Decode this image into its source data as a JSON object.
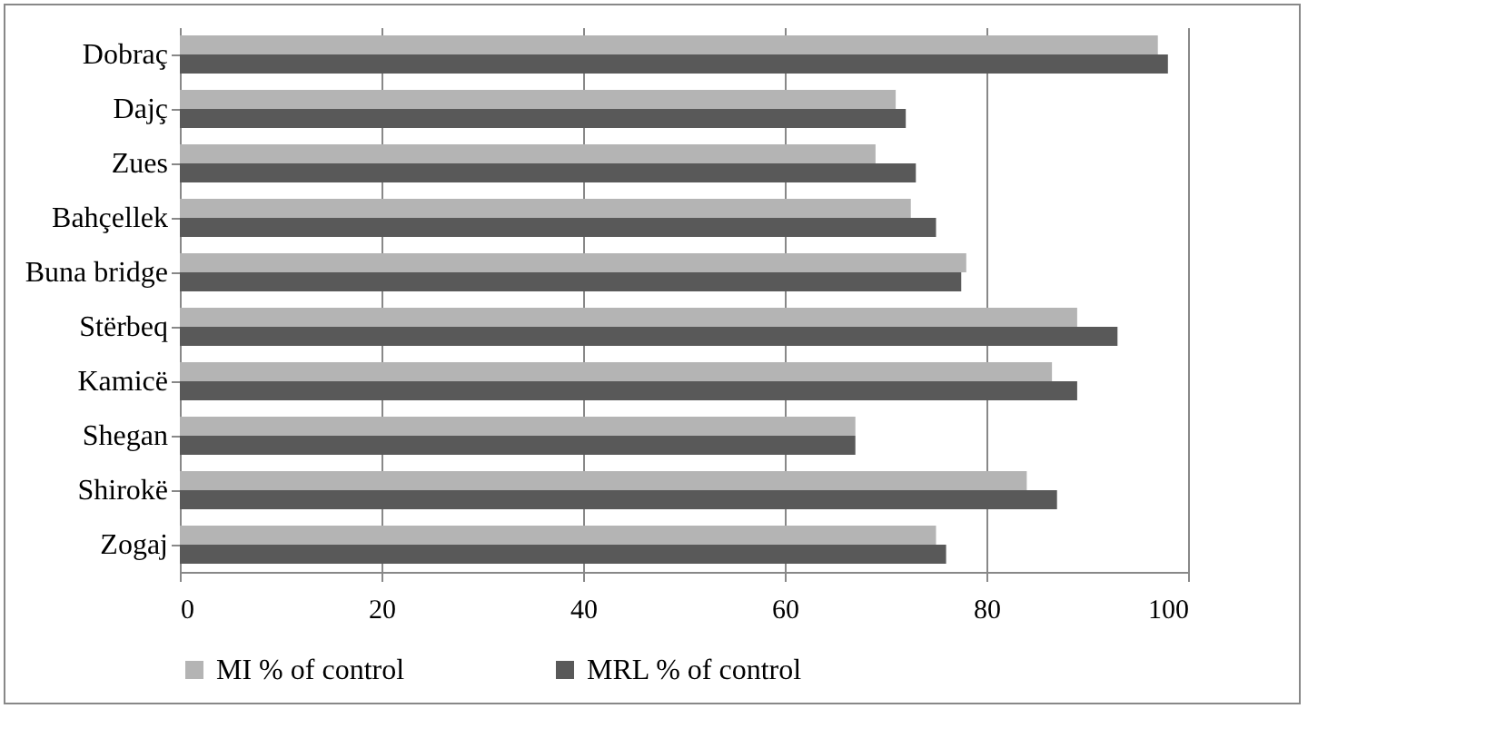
{
  "chart_data": {
    "type": "bar",
    "orientation": "horizontal",
    "categories": [
      "Dobraç",
      "Dajç",
      "Zues",
      "Bahçellek",
      "Buna bridge",
      "Stërbeq",
      "Kamicë",
      "Shegan",
      "Shirokë",
      "Zogaj"
    ],
    "series": [
      {
        "name": "MI % of control",
        "color": "#b4b4b4",
        "values": [
          97,
          71,
          69,
          72.5,
          78,
          89,
          86.5,
          67,
          84,
          75
        ]
      },
      {
        "name": "MRL % of control",
        "color": "#595959",
        "values": [
          98,
          72,
          73,
          75,
          77.5,
          93,
          89,
          67,
          87,
          76
        ]
      }
    ],
    "xlim": [
      0,
      100
    ],
    "xticks": [
      0,
      20,
      40,
      60,
      80,
      100
    ],
    "grid": "x",
    "legend": "bottom"
  }
}
